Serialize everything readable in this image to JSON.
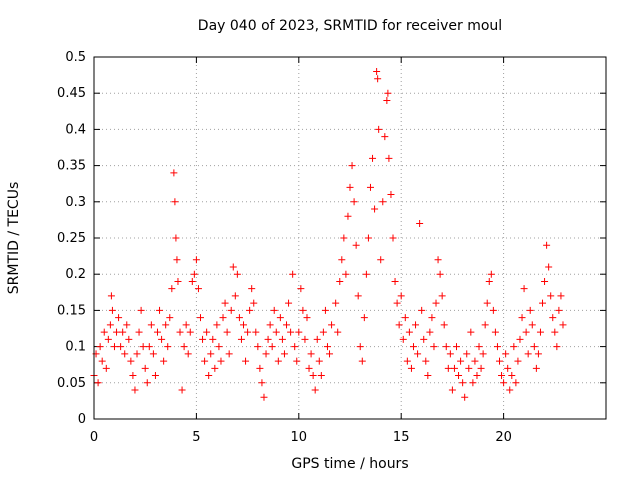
{
  "chart_data": {
    "type": "scatter",
    "title": "Day 040 of 2023, SRMTID for receiver moul",
    "xlabel": "GPS time / hours",
    "ylabel": "SRMTID / TECUs",
    "xlim": [
      0,
      25
    ],
    "ylim": [
      0,
      0.5
    ],
    "xticks": [
      0,
      5,
      10,
      15,
      20
    ],
    "yticks": [
      0,
      0.05,
      0.1,
      0.15,
      0.2,
      0.25,
      0.3,
      0.35,
      0.4,
      0.45,
      0.5
    ],
    "xtick_labels": [
      "0",
      "5",
      "10",
      "15",
      "20"
    ],
    "ytick_labels": [
      "0",
      "0.05",
      "0.1",
      "0.15",
      "0.2",
      "0.25",
      "0.3",
      "0.35",
      "0.4",
      "0.45",
      "0.5"
    ],
    "grid": true,
    "marker": "+",
    "color": "#ff0000",
    "series": [
      {
        "name": "SRMTID",
        "points": [
          [
            0.0,
            0.06
          ],
          [
            0.1,
            0.09
          ],
          [
            0.2,
            0.05
          ],
          [
            0.3,
            0.1
          ],
          [
            0.4,
            0.08
          ],
          [
            0.5,
            0.12
          ],
          [
            0.6,
            0.07
          ],
          [
            0.7,
            0.11
          ],
          [
            0.8,
            0.13
          ],
          [
            0.85,
            0.17
          ],
          [
            0.9,
            0.15
          ],
          [
            1.0,
            0.1
          ],
          [
            1.1,
            0.12
          ],
          [
            1.2,
            0.14
          ],
          [
            1.3,
            0.1
          ],
          [
            1.4,
            0.12
          ],
          [
            1.5,
            0.09
          ],
          [
            1.6,
            0.13
          ],
          [
            1.7,
            0.11
          ],
          [
            1.8,
            0.08
          ],
          [
            1.9,
            0.06
          ],
          [
            2.0,
            0.04
          ],
          [
            2.1,
            0.09
          ],
          [
            2.2,
            0.12
          ],
          [
            2.3,
            0.15
          ],
          [
            2.4,
            0.1
          ],
          [
            2.5,
            0.07
          ],
          [
            2.6,
            0.05
          ],
          [
            2.7,
            0.1
          ],
          [
            2.8,
            0.13
          ],
          [
            2.9,
            0.09
          ],
          [
            3.0,
            0.06
          ],
          [
            3.1,
            0.12
          ],
          [
            3.2,
            0.15
          ],
          [
            3.3,
            0.11
          ],
          [
            3.4,
            0.08
          ],
          [
            3.5,
            0.13
          ],
          [
            3.6,
            0.1
          ],
          [
            3.7,
            0.14
          ],
          [
            3.8,
            0.18
          ],
          [
            3.9,
            0.34
          ],
          [
            3.95,
            0.3
          ],
          [
            4.0,
            0.25
          ],
          [
            4.05,
            0.22
          ],
          [
            4.1,
            0.19
          ],
          [
            4.2,
            0.12
          ],
          [
            4.3,
            0.04
          ],
          [
            4.4,
            0.1
          ],
          [
            4.5,
            0.13
          ],
          [
            4.6,
            0.09
          ],
          [
            4.7,
            0.12
          ],
          [
            4.8,
            0.19
          ],
          [
            4.9,
            0.2
          ],
          [
            5.0,
            0.22
          ],
          [
            5.1,
            0.18
          ],
          [
            5.2,
            0.14
          ],
          [
            5.3,
            0.11
          ],
          [
            5.4,
            0.08
          ],
          [
            5.5,
            0.12
          ],
          [
            5.6,
            0.06
          ],
          [
            5.7,
            0.09
          ],
          [
            5.8,
            0.11
          ],
          [
            5.9,
            0.07
          ],
          [
            6.0,
            0.13
          ],
          [
            6.1,
            0.1
          ],
          [
            6.2,
            0.08
          ],
          [
            6.3,
            0.14
          ],
          [
            6.4,
            0.16
          ],
          [
            6.5,
            0.12
          ],
          [
            6.6,
            0.09
          ],
          [
            6.7,
            0.15
          ],
          [
            6.8,
            0.21
          ],
          [
            6.9,
            0.17
          ],
          [
            7.0,
            0.2
          ],
          [
            7.1,
            0.14
          ],
          [
            7.2,
            0.11
          ],
          [
            7.3,
            0.13
          ],
          [
            7.4,
            0.08
          ],
          [
            7.5,
            0.12
          ],
          [
            7.6,
            0.15
          ],
          [
            7.7,
            0.18
          ],
          [
            7.8,
            0.16
          ],
          [
            7.9,
            0.12
          ],
          [
            8.0,
            0.1
          ],
          [
            8.1,
            0.07
          ],
          [
            8.2,
            0.05
          ],
          [
            8.3,
            0.03
          ],
          [
            8.4,
            0.09
          ],
          [
            8.5,
            0.11
          ],
          [
            8.6,
            0.13
          ],
          [
            8.7,
            0.1
          ],
          [
            8.8,
            0.15
          ],
          [
            8.9,
            0.12
          ],
          [
            9.0,
            0.08
          ],
          [
            9.1,
            0.14
          ],
          [
            9.2,
            0.11
          ],
          [
            9.3,
            0.09
          ],
          [
            9.4,
            0.13
          ],
          [
            9.5,
            0.16
          ],
          [
            9.6,
            0.12
          ],
          [
            9.7,
            0.2
          ],
          [
            9.8,
            0.1
          ],
          [
            9.9,
            0.08
          ],
          [
            10.0,
            0.12
          ],
          [
            10.1,
            0.18
          ],
          [
            10.2,
            0.15
          ],
          [
            10.3,
            0.11
          ],
          [
            10.4,
            0.14
          ],
          [
            10.5,
            0.07
          ],
          [
            10.6,
            0.09
          ],
          [
            10.7,
            0.06
          ],
          [
            10.8,
            0.04
          ],
          [
            10.9,
            0.11
          ],
          [
            11.0,
            0.08
          ],
          [
            11.1,
            0.06
          ],
          [
            11.2,
            0.12
          ],
          [
            11.3,
            0.15
          ],
          [
            11.4,
            0.1
          ],
          [
            11.5,
            0.09
          ],
          [
            11.6,
            0.13
          ],
          [
            11.8,
            0.16
          ],
          [
            11.9,
            0.12
          ],
          [
            12.0,
            0.19
          ],
          [
            12.1,
            0.22
          ],
          [
            12.2,
            0.25
          ],
          [
            12.3,
            0.2
          ],
          [
            12.4,
            0.28
          ],
          [
            12.5,
            0.32
          ],
          [
            12.6,
            0.35
          ],
          [
            12.7,
            0.3
          ],
          [
            12.8,
            0.24
          ],
          [
            12.9,
            0.17
          ],
          [
            13.0,
            0.1
          ],
          [
            13.1,
            0.08
          ],
          [
            13.2,
            0.14
          ],
          [
            13.3,
            0.2
          ],
          [
            13.4,
            0.25
          ],
          [
            13.5,
            0.32
          ],
          [
            13.6,
            0.36
          ],
          [
            13.7,
            0.29
          ],
          [
            13.8,
            0.48
          ],
          [
            13.85,
            0.47
          ],
          [
            13.9,
            0.4
          ],
          [
            14.0,
            0.22
          ],
          [
            14.1,
            0.3
          ],
          [
            14.2,
            0.39
          ],
          [
            14.3,
            0.44
          ],
          [
            14.35,
            0.45
          ],
          [
            14.4,
            0.36
          ],
          [
            14.5,
            0.31
          ],
          [
            14.6,
            0.25
          ],
          [
            14.7,
            0.19
          ],
          [
            14.8,
            0.16
          ],
          [
            14.9,
            0.13
          ],
          [
            15.0,
            0.17
          ],
          [
            15.1,
            0.11
          ],
          [
            15.2,
            0.14
          ],
          [
            15.3,
            0.08
          ],
          [
            15.4,
            0.12
          ],
          [
            15.5,
            0.07
          ],
          [
            15.6,
            0.1
          ],
          [
            15.7,
            0.13
          ],
          [
            15.8,
            0.09
          ],
          [
            15.9,
            0.27
          ],
          [
            16.0,
            0.15
          ],
          [
            16.1,
            0.11
          ],
          [
            16.2,
            0.08
          ],
          [
            16.3,
            0.06
          ],
          [
            16.4,
            0.12
          ],
          [
            16.5,
            0.14
          ],
          [
            16.6,
            0.1
          ],
          [
            16.7,
            0.16
          ],
          [
            16.8,
            0.22
          ],
          [
            16.9,
            0.2
          ],
          [
            17.0,
            0.17
          ],
          [
            17.1,
            0.13
          ],
          [
            17.2,
            0.1
          ],
          [
            17.3,
            0.07
          ],
          [
            17.4,
            0.09
          ],
          [
            17.5,
            0.04
          ],
          [
            17.6,
            0.07
          ],
          [
            17.7,
            0.1
          ],
          [
            17.8,
            0.06
          ],
          [
            17.9,
            0.08
          ],
          [
            18.0,
            0.05
          ],
          [
            18.1,
            0.03
          ],
          [
            18.2,
            0.09
          ],
          [
            18.3,
            0.07
          ],
          [
            18.4,
            0.12
          ],
          [
            18.5,
            0.05
          ],
          [
            18.6,
            0.08
          ],
          [
            18.7,
            0.06
          ],
          [
            18.8,
            0.1
          ],
          [
            18.9,
            0.07
          ],
          [
            19.0,
            0.09
          ],
          [
            19.1,
            0.13
          ],
          [
            19.2,
            0.16
          ],
          [
            19.3,
            0.19
          ],
          [
            19.4,
            0.2
          ],
          [
            19.5,
            0.15
          ],
          [
            19.6,
            0.12
          ],
          [
            19.7,
            0.1
          ],
          [
            19.8,
            0.08
          ],
          [
            19.9,
            0.06
          ],
          [
            20.0,
            0.05
          ],
          [
            20.1,
            0.09
          ],
          [
            20.2,
            0.07
          ],
          [
            20.3,
            0.04
          ],
          [
            20.4,
            0.06
          ],
          [
            20.5,
            0.1
          ],
          [
            20.6,
            0.05
          ],
          [
            20.7,
            0.08
          ],
          [
            20.8,
            0.11
          ],
          [
            20.9,
            0.14
          ],
          [
            21.0,
            0.18
          ],
          [
            21.1,
            0.12
          ],
          [
            21.2,
            0.09
          ],
          [
            21.3,
            0.15
          ],
          [
            21.4,
            0.13
          ],
          [
            21.5,
            0.1
          ],
          [
            21.6,
            0.07
          ],
          [
            21.7,
            0.09
          ],
          [
            21.8,
            0.12
          ],
          [
            21.9,
            0.16
          ],
          [
            22.0,
            0.19
          ],
          [
            22.1,
            0.24
          ],
          [
            22.2,
            0.21
          ],
          [
            22.3,
            0.17
          ],
          [
            22.4,
            0.14
          ],
          [
            22.5,
            0.12
          ],
          [
            22.6,
            0.1
          ],
          [
            22.7,
            0.15
          ],
          [
            22.8,
            0.17
          ],
          [
            22.9,
            0.13
          ]
        ]
      }
    ]
  }
}
